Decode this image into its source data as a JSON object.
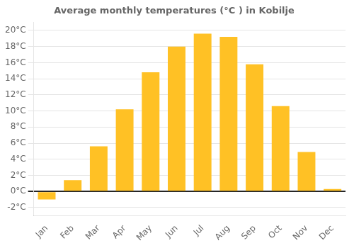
{
  "chart_data": {
    "type": "bar",
    "title": "Average monthly temperatures (°C ) in Kobilje",
    "categories": [
      "Jan",
      "Feb",
      "Mar",
      "Apr",
      "May",
      "Jun",
      "Jul",
      "Aug",
      "Sep",
      "Oct",
      "Nov",
      "Dec"
    ],
    "values": [
      -1.0,
      1.4,
      5.6,
      10.2,
      14.8,
      18.0,
      19.6,
      19.2,
      15.8,
      10.6,
      4.9,
      0.3
    ],
    "color": "#FFC125",
    "ylim": [
      -3,
      21
    ],
    "yticks": [
      {
        "value": -2,
        "label": "-2°C"
      },
      {
        "value": 0,
        "label": "0°C"
      },
      {
        "value": 2,
        "label": "2°C"
      },
      {
        "value": 4,
        "label": "4°C"
      },
      {
        "value": 6,
        "label": "6°C"
      },
      {
        "value": 8,
        "label": "8°C"
      },
      {
        "value": 10,
        "label": "10°C"
      },
      {
        "value": 12,
        "label": "12°C"
      },
      {
        "value": 14,
        "label": "14°C"
      },
      {
        "value": 16,
        "label": "16°C"
      },
      {
        "value": 18,
        "label": "18°C"
      },
      {
        "value": 20,
        "label": "20°C"
      }
    ],
    "grid": true
  }
}
